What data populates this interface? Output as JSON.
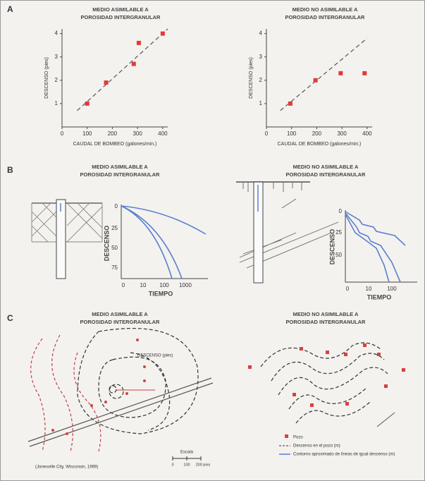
{
  "labels": {
    "panel_a": "A",
    "panel_b": "B",
    "panel_c": "C"
  },
  "chart_data": [
    {
      "type": "scatter",
      "title": [
        "MEDIO ASIMILABLE A",
        "POROSIDAD INTERGRANULAR"
      ],
      "xlabel": "CAUDAL DE BOMBEO (galones/min.)",
      "ylabel": "DESCENSO (pies)",
      "x": [
        100,
        175,
        285,
        305,
        400
      ],
      "y": [
        1,
        1.9,
        2.7,
        3.6,
        4
      ],
      "color": "#e03a3a",
      "xlim": [
        0,
        420
      ],
      "ylim": [
        0,
        4.2
      ],
      "xticks": [
        0,
        100,
        200,
        300,
        400
      ],
      "yticks": [
        1,
        2,
        3,
        4
      ],
      "trendline": {
        "x": [
          60,
          420
        ],
        "y": [
          0.7,
          4.2
        ]
      }
    },
    {
      "type": "scatter",
      "title": [
        "MEDIO NO ASIMILABLE A",
        "POROSIDAD INTERGRANULAR"
      ],
      "xlabel": "CAUDAL DE BOMBEO (galones/min.)",
      "ylabel": "DESCENSO (pies)",
      "x": [
        95,
        195,
        295,
        390
      ],
      "y": [
        1,
        2,
        2.3,
        2.3
      ],
      "color": "#e03a3a",
      "xlim": [
        0,
        420
      ],
      "ylim": [
        0,
        4.2
      ],
      "xticks": [
        0,
        100,
        200,
        300,
        400
      ],
      "yticks": [
        1,
        2,
        3,
        4
      ],
      "trendline": {
        "x": [
          55,
          400
        ],
        "y": [
          0.7,
          3.8
        ]
      }
    }
  ],
  "diagrams": {
    "b_left": {
      "title": [
        "MEDIO ASIMILABLE A",
        "POROSIDAD INTERGRANULAR"
      ],
      "xlabel": "TIEMPO",
      "ylabel": "DESCENSO",
      "xticks": [
        0,
        10,
        100,
        1000
      ],
      "yticks": [
        0,
        25,
        50,
        75
      ]
    },
    "b_right": {
      "title": [
        "MEDIO NO ASIMILABLE A",
        "POROSIDAD INTERGRANULAR"
      ],
      "xlabel": "TIEMPO",
      "ylabel": "DESCENSO",
      "xticks": [
        0,
        10,
        100
      ],
      "yticks": [
        0,
        25,
        50
      ]
    },
    "c_left": {
      "title": [
        "MEDIO ASIMILABLE A",
        "POROSIDAD INTERGRANULAR"
      ],
      "legend_label": "DESCENSO (pies)",
      "caption": "(Jonesville City, Wisconsin, 1969)",
      "scale_title": "Escala",
      "scale_ticks": [
        "0",
        "100",
        "200 pies"
      ]
    },
    "c_right": {
      "title": [
        "MEDIO NO ASIMILABLE A",
        "POROSIDAD INTERGRANULAR"
      ],
      "legend": [
        "Pozo",
        "Descenso en el pozo (m)",
        "Contorno aproximado de líneas de igual descenso (m)"
      ]
    }
  }
}
